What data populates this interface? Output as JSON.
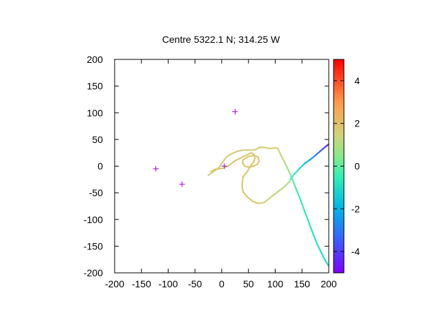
{
  "chart_data": {
    "type": "scatter",
    "title": "Centre 5322.1 N; 314.25  W",
    "xlabel": "",
    "ylabel": "",
    "xlim": [
      -200,
      200
    ],
    "ylim": [
      -200,
      200
    ],
    "x_ticks": [
      -200,
      -150,
      -100,
      -50,
      0,
      50,
      100,
      150,
      200
    ],
    "y_ticks": [
      -200,
      -150,
      -100,
      -50,
      0,
      50,
      100,
      150,
      200
    ],
    "grid": false,
    "legend": "none",
    "colorbar": {
      "range": [
        -5,
        5
      ],
      "ticks": [
        -4,
        -2,
        0,
        2,
        4
      ],
      "palette": "rainbow"
    },
    "markers": {
      "symbol": "+",
      "color": "#9400d3",
      "points": [
        [
          -123,
          -5
        ],
        [
          -74,
          -34
        ],
        [
          5,
          0
        ],
        [
          25,
          102
        ]
      ]
    },
    "tracks": [
      {
        "points": [
          [
            -25,
            -17
          ],
          [
            -15,
            -10
          ],
          [
            -5,
            -3
          ],
          [
            2,
            8
          ],
          [
            10,
            18
          ],
          [
            20,
            24
          ],
          [
            30,
            28
          ],
          [
            40,
            30
          ],
          [
            50,
            30
          ],
          [
            60,
            30
          ],
          [
            65,
            32
          ],
          [
            70,
            35
          ],
          [
            80,
            35
          ],
          [
            90,
            33
          ],
          [
            100,
            34
          ],
          [
            105,
            33
          ]
        ],
        "values": [
          1.6,
          1.6,
          1.6,
          1.6,
          1.6,
          1.6,
          1.6,
          1.6,
          1.6,
          1.6,
          1.6,
          1.6,
          1.6,
          1.6,
          1.6,
          1.6
        ]
      },
      {
        "points": [
          [
            40,
            12
          ],
          [
            50,
            18
          ],
          [
            60,
            20
          ],
          [
            68,
            17
          ],
          [
            70,
            10
          ],
          [
            67,
            4
          ],
          [
            60,
            0
          ],
          [
            50,
            -2
          ],
          [
            43,
            0
          ],
          [
            39,
            6
          ],
          [
            40,
            12
          ]
        ],
        "values": [
          1.8,
          1.8,
          1.8,
          1.8,
          1.8,
          1.8,
          1.8,
          1.8,
          1.8,
          1.8,
          1.8
        ]
      },
      {
        "points": [
          [
            -20,
            -10
          ],
          [
            -12,
            -6
          ],
          [
            -5,
            -5
          ],
          [
            2,
            -4
          ],
          [
            12,
            0
          ],
          [
            25,
            10
          ],
          [
            35,
            15
          ],
          [
            45,
            20
          ],
          [
            55,
            25
          ],
          [
            60,
            22
          ],
          [
            62,
            15
          ],
          [
            60,
            8
          ],
          [
            55,
            2
          ],
          [
            48,
            -10
          ],
          [
            40,
            -20
          ],
          [
            38,
            -35
          ],
          [
            40,
            -48
          ],
          [
            48,
            -58
          ],
          [
            58,
            -66
          ],
          [
            68,
            -70
          ],
          [
            80,
            -68
          ],
          [
            92,
            -58
          ],
          [
            105,
            -48
          ],
          [
            118,
            -38
          ],
          [
            128,
            -28
          ]
        ],
        "values": [
          1.8,
          1.8,
          1.8,
          1.8,
          1.8,
          1.8,
          1.8,
          1.8,
          1.8,
          1.8,
          1.8,
          1.8,
          1.8,
          1.8,
          1.8,
          1.8,
          1.8,
          1.8,
          1.8,
          1.8,
          1.6,
          1.4,
          1.2,
          1.0,
          0.8
        ]
      },
      {
        "points": [
          [
            105,
            33
          ],
          [
            110,
            22
          ],
          [
            116,
            10
          ],
          [
            122,
            -2
          ],
          [
            128,
            -15
          ],
          [
            132,
            -25
          ],
          [
            140,
            -45
          ],
          [
            148,
            -65
          ],
          [
            155,
            -85
          ],
          [
            162,
            -103
          ],
          [
            170,
            -125
          ],
          [
            178,
            -145
          ],
          [
            186,
            -162
          ],
          [
            194,
            -178
          ],
          [
            200,
            -187
          ]
        ],
        "values": [
          1.6,
          1.4,
          1.2,
          1.0,
          0.5,
          0.0,
          -0.3,
          -0.5,
          -0.6,
          -0.7,
          -0.8,
          -0.9,
          -1.0,
          -1.0,
          -1.1
        ]
      },
      {
        "points": [
          [
            128,
            -25
          ],
          [
            136,
            -15
          ],
          [
            145,
            -5
          ],
          [
            155,
            5
          ],
          [
            165,
            12
          ],
          [
            175,
            20
          ],
          [
            183,
            27
          ],
          [
            190,
            33
          ],
          [
            196,
            38
          ],
          [
            200,
            41
          ]
        ],
        "values": [
          0.0,
          -0.5,
          -1.0,
          -1.5,
          -2.2,
          -2.8,
          -3.2,
          -3.8,
          -4.2,
          -4.6
        ]
      }
    ]
  }
}
